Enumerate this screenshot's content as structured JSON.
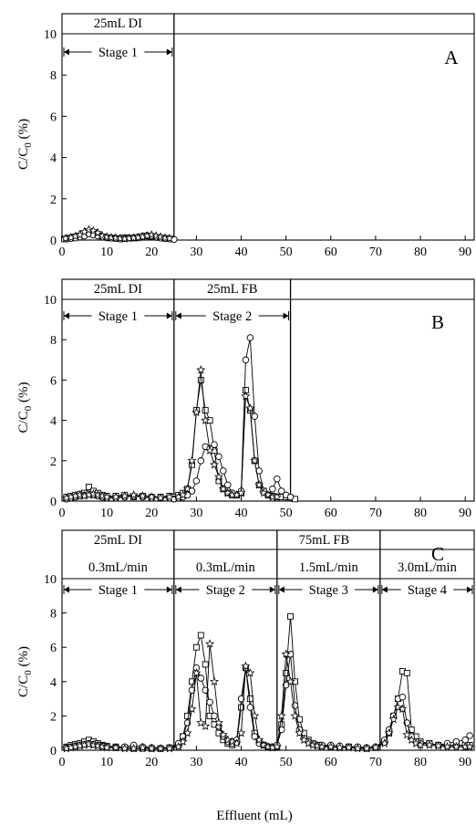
{
  "chart_data": [
    {
      "panel": "A",
      "type": "line",
      "xlim": [
        0,
        92
      ],
      "ylim": [
        0,
        11
      ],
      "xticks": [
        0,
        10,
        20,
        30,
        40,
        50,
        60,
        70,
        80,
        90
      ],
      "yticks": [
        0,
        2,
        4,
        6,
        8,
        10
      ],
      "ylabel": "C/C0 (%)",
      "xlabel": "",
      "panel_label": "A",
      "grid": false,
      "dividers": [
        25
      ],
      "top_labels": [
        {
          "text": "25mL DI",
          "x": 12.5
        }
      ],
      "stage_arrows": [
        {
          "label": "Stage 1",
          "from": 0,
          "to": 25
        }
      ],
      "markers": [
        "square",
        "circle",
        "star"
      ],
      "series": [
        {
          "marker": "square",
          "x": [
            0.5,
            1.5,
            2.5,
            3.5,
            4.5,
            5.5,
            6.5,
            7.5,
            8.5,
            9.5,
            10.5,
            11.5,
            12.5,
            13.5,
            14.5,
            15.5,
            16.5,
            17.5,
            18.5,
            19.5,
            20.5,
            21.5,
            22.5,
            23.5,
            24.5
          ],
          "y": [
            0.05,
            0.1,
            0.15,
            0.2,
            0.3,
            0.4,
            0.35,
            0.3,
            0.2,
            0.15,
            0.1,
            0.1,
            0.08,
            0.1,
            0.12,
            0.1,
            0.1,
            0.15,
            0.2,
            0.18,
            0.15,
            0.12,
            0.1,
            0.08,
            0.05
          ]
        },
        {
          "marker": "circle",
          "x": [
            1,
            2,
            3,
            4,
            5,
            6,
            7,
            8,
            9,
            10,
            11,
            12,
            13,
            14,
            15,
            16,
            17,
            18,
            19,
            20,
            21,
            22,
            23,
            24,
            25
          ],
          "y": [
            0.05,
            0.08,
            0.1,
            0.15,
            0.2,
            0.3,
            0.25,
            0.2,
            0.15,
            0.12,
            0.1,
            0.08,
            0.05,
            0.08,
            0.1,
            0.12,
            0.15,
            0.2,
            0.22,
            0.2,
            0.15,
            0.1,
            0.08,
            0.05,
            0.03
          ]
        },
        {
          "marker": "star",
          "x": [
            0.8,
            2,
            3,
            4,
            5,
            6,
            7,
            8,
            9,
            10,
            11,
            12,
            13,
            14,
            15,
            16,
            17,
            18,
            19,
            20,
            21,
            22,
            23,
            24
          ],
          "y": [
            0.08,
            0.12,
            0.18,
            0.25,
            0.4,
            0.5,
            0.45,
            0.35,
            0.2,
            0.15,
            0.12,
            0.1,
            0.08,
            0.06,
            0.08,
            0.1,
            0.12,
            0.15,
            0.2,
            0.25,
            0.2,
            0.15,
            0.1,
            0.08
          ]
        }
      ]
    },
    {
      "panel": "B",
      "type": "line",
      "xlim": [
        0,
        92
      ],
      "ylim": [
        0,
        11
      ],
      "xticks": [
        0,
        10,
        20,
        30,
        40,
        50,
        60,
        70,
        80,
        90
      ],
      "yticks": [
        0,
        2,
        4,
        6,
        8,
        10
      ],
      "ylabel": "C/C0 (%)",
      "xlabel": "",
      "panel_label": "B",
      "grid": false,
      "dividers": [
        25,
        51
      ],
      "top_labels": [
        {
          "text": "25mL DI",
          "x": 12.5
        },
        {
          "text": "25mL FB",
          "x": 38
        }
      ],
      "stage_arrows": [
        {
          "label": "Stage 1",
          "from": 0,
          "to": 25
        },
        {
          "label": "Stage 2",
          "from": 25,
          "to": 51
        }
      ],
      "markers": [
        "square",
        "circle",
        "star"
      ],
      "series": [
        {
          "marker": "square",
          "x": [
            1,
            2,
            3,
            4,
            5,
            6,
            7,
            8,
            9,
            10,
            12,
            14,
            16,
            18,
            20,
            22,
            24,
            25,
            26,
            27,
            28,
            29,
            30,
            31,
            32,
            33,
            34,
            35,
            36,
            37,
            38,
            39,
            40,
            41,
            42,
            43,
            44,
            45,
            46,
            47,
            48,
            49,
            50,
            51,
            52
          ],
          "y": [
            0.2,
            0.25,
            0.3,
            0.35,
            0.4,
            0.7,
            0.5,
            0.4,
            0.3,
            0.25,
            0.25,
            0.3,
            0.2,
            0.25,
            0.2,
            0.2,
            0.25,
            0.2,
            0.3,
            0.4,
            0.6,
            1.8,
            4.5,
            6.0,
            4.5,
            4.0,
            2.5,
            1.0,
            0.6,
            0.4,
            0.3,
            0.3,
            0.4,
            5.5,
            4.5,
            2.0,
            0.8,
            0.5,
            0.3,
            0.25,
            0.2,
            0.2,
            0.2,
            0.15,
            0.1
          ]
        },
        {
          "marker": "circle",
          "x": [
            1,
            2,
            3,
            4,
            5,
            6,
            7,
            8,
            9,
            10,
            12,
            14,
            16,
            18,
            20,
            22,
            24,
            25,
            26,
            27,
            28,
            29,
            30,
            31,
            32,
            33,
            34,
            35,
            36,
            37,
            38,
            39,
            40,
            41,
            42,
            43,
            44,
            45,
            46,
            47,
            48,
            49,
            50,
            51
          ],
          "y": [
            0.1,
            0.15,
            0.2,
            0.25,
            0.3,
            0.35,
            0.3,
            0.25,
            0.2,
            0.15,
            0.15,
            0.2,
            0.25,
            0.2,
            0.15,
            0.2,
            0.15,
            0.1,
            0.15,
            0.2,
            0.3,
            0.5,
            1.0,
            2.0,
            2.7,
            2.6,
            2.8,
            2.2,
            1.5,
            0.8,
            0.4,
            0.3,
            0.5,
            7.0,
            8.1,
            4.2,
            1.5,
            0.5,
            0.3,
            0.6,
            1.1,
            0.5,
            0.3,
            0.2
          ]
        },
        {
          "marker": "star",
          "x": [
            1,
            2,
            3,
            4,
            5,
            6,
            7,
            8,
            9,
            10,
            12,
            14,
            16,
            18,
            20,
            22,
            24,
            26,
            27,
            28,
            29,
            30,
            31,
            32,
            33,
            34,
            35,
            36,
            37,
            38,
            39,
            40,
            41,
            42,
            43,
            44,
            45,
            46,
            47,
            48
          ],
          "y": [
            0.15,
            0.2,
            0.25,
            0.3,
            0.25,
            0.3,
            0.35,
            0.3,
            0.25,
            0.2,
            0.2,
            0.25,
            0.3,
            0.25,
            0.2,
            0.15,
            0.2,
            0.2,
            0.3,
            0.6,
            2.0,
            4.4,
            6.5,
            4.0,
            2.5,
            1.8,
            1.2,
            0.6,
            0.4,
            0.3,
            0.3,
            0.4,
            5.2,
            4.6,
            2.0,
            0.8,
            0.4,
            0.3,
            0.2,
            0.2
          ]
        }
      ]
    },
    {
      "panel": "C",
      "type": "line",
      "xlim": [
        0,
        92
      ],
      "ylim": [
        0,
        11
      ],
      "xticks": [
        0,
        10,
        20,
        30,
        40,
        50,
        60,
        70,
        80,
        90
      ],
      "yticks": [
        0,
        2,
        4,
        6,
        8,
        10
      ],
      "ylabel": "C/C0 (%)",
      "xlabel": "Effluent (mL)",
      "panel_label": "C",
      "grid": false,
      "dividers": [
        25,
        48,
        71
      ],
      "header_label": "75mL FB",
      "top_labels": [
        {
          "text": "25mL DI",
          "x": 12.5
        },
        {
          "text": "0.3mL/min",
          "x": 12.5
        },
        {
          "text": "0.3mL/min",
          "x": 36.5
        },
        {
          "text": "1.5mL/min",
          "x": 59.5
        },
        {
          "text": "3.0mL/min",
          "x": 81.5
        }
      ],
      "stage_arrows": [
        {
          "label": "Stage 1",
          "from": 0,
          "to": 25
        },
        {
          "label": "Stage 2",
          "from": 25,
          "to": 48
        },
        {
          "label": "Stage 3",
          "from": 48,
          "to": 71
        },
        {
          "label": "Stage 4",
          "from": 71,
          "to": 92
        }
      ],
      "markers": [
        "square",
        "circle",
        "star"
      ],
      "series": [
        {
          "marker": "square",
          "x": [
            1,
            2,
            3,
            4,
            5,
            6,
            7,
            8,
            9,
            10,
            12,
            14,
            16,
            18,
            20,
            22,
            24,
            26,
            27,
            28,
            29,
            30,
            31,
            32,
            33,
            34,
            35,
            36,
            37,
            38,
            39,
            40,
            41,
            42,
            43,
            44,
            45,
            46,
            47,
            48,
            49,
            50,
            51,
            52,
            53,
            54,
            55,
            56,
            57,
            58,
            60,
            62,
            64,
            66,
            68,
            70,
            72,
            73,
            74,
            75,
            76,
            77,
            78,
            79,
            80,
            82,
            84,
            86,
            88,
            90,
            91
          ],
          "y": [
            0.2,
            0.3,
            0.35,
            0.4,
            0.5,
            0.6,
            0.5,
            0.4,
            0.3,
            0.25,
            0.2,
            0.15,
            0.1,
            0.1,
            0.1,
            0.1,
            0.15,
            0.3,
            0.8,
            2.0,
            4.0,
            6.0,
            6.7,
            5.0,
            2.0,
            1.5,
            1.0,
            0.6,
            0.4,
            0.3,
            0.5,
            2.5,
            4.8,
            3.0,
            1.0,
            0.5,
            0.3,
            0.2,
            0.15,
            0.2,
            1.5,
            4.5,
            7.8,
            4.0,
            1.8,
            1.0,
            0.6,
            0.4,
            0.3,
            0.25,
            0.2,
            0.15,
            0.2,
            0.15,
            0.1,
            0.15,
            0.5,
            1.0,
            2.0,
            3.0,
            4.6,
            4.5,
            1.2,
            0.8,
            0.5,
            0.4,
            0.3,
            0.3,
            0.3,
            0.3,
            0.3
          ]
        },
        {
          "marker": "circle",
          "x": [
            1,
            2,
            3,
            4,
            5,
            6,
            7,
            8,
            9,
            10,
            12,
            14,
            16,
            18,
            20,
            22,
            24,
            26,
            27,
            28,
            29,
            30,
            31,
            32,
            33,
            34,
            35,
            36,
            37,
            38,
            39,
            40,
            41,
            42,
            43,
            44,
            45,
            46,
            47,
            48,
            49,
            50,
            51,
            52,
            53,
            54,
            55,
            56,
            57,
            58,
            60,
            62,
            64,
            66,
            68,
            70,
            72,
            73,
            74,
            75,
            76,
            77,
            78,
            79,
            80,
            82,
            84,
            86,
            88,
            90,
            91
          ],
          "y": [
            0.15,
            0.2,
            0.25,
            0.3,
            0.35,
            0.4,
            0.35,
            0.3,
            0.25,
            0.2,
            0.15,
            0.2,
            0.3,
            0.2,
            0.15,
            0.1,
            0.15,
            0.4,
            0.8,
            1.6,
            3.5,
            4.8,
            4.2,
            3.5,
            2.8,
            2.0,
            1.4,
            0.8,
            0.5,
            0.4,
            0.6,
            3.0,
            4.8,
            2.5,
            0.8,
            0.4,
            0.3,
            0.2,
            0.2,
            0.3,
            1.2,
            3.8,
            5.6,
            2.6,
            1.2,
            0.7,
            0.5,
            0.4,
            0.3,
            0.3,
            0.3,
            0.25,
            0.2,
            0.2,
            0.15,
            0.2,
            0.6,
            1.2,
            2.0,
            3.0,
            3.1,
            1.6,
            0.8,
            0.5,
            0.4,
            0.4,
            0.3,
            0.4,
            0.5,
            0.6,
            0.85
          ]
        },
        {
          "marker": "star",
          "x": [
            1,
            2,
            3,
            4,
            5,
            6,
            7,
            8,
            9,
            10,
            12,
            14,
            16,
            18,
            20,
            22,
            24,
            26,
            27,
            28,
            29,
            30,
            31,
            32,
            33,
            34,
            35,
            36,
            37,
            38,
            39,
            40,
            41,
            42,
            43,
            44,
            45,
            46,
            47,
            48,
            49,
            50,
            51,
            52,
            53,
            54,
            55,
            56,
            57,
            58,
            60,
            62,
            64,
            66,
            68,
            70,
            72,
            73,
            74,
            75,
            76,
            77,
            78,
            79,
            80,
            82,
            84,
            86,
            88,
            90,
            91
          ],
          "y": [
            0.1,
            0.15,
            0.2,
            0.25,
            0.3,
            0.35,
            0.3,
            0.25,
            0.2,
            0.15,
            0.15,
            0.1,
            0.1,
            0.15,
            0.1,
            0.1,
            0.1,
            0.2,
            0.5,
            1.0,
            2.4,
            4.5,
            1.6,
            1.4,
            6.2,
            4.0,
            1.6,
            0.9,
            0.6,
            0.5,
            0.4,
            1.0,
            4.9,
            4.5,
            2.0,
            0.6,
            0.3,
            0.2,
            0.15,
            0.2,
            2.0,
            5.6,
            4.0,
            2.0,
            1.0,
            0.6,
            0.4,
            0.3,
            0.25,
            0.2,
            0.2,
            0.15,
            0.15,
            0.1,
            0.1,
            0.15,
            0.4,
            1.0,
            1.8,
            2.5,
            2.4,
            0.9,
            0.6,
            0.4,
            0.3,
            0.3,
            0.25,
            0.2,
            0.2,
            0.2,
            0.2
          ]
        }
      ]
    }
  ]
}
